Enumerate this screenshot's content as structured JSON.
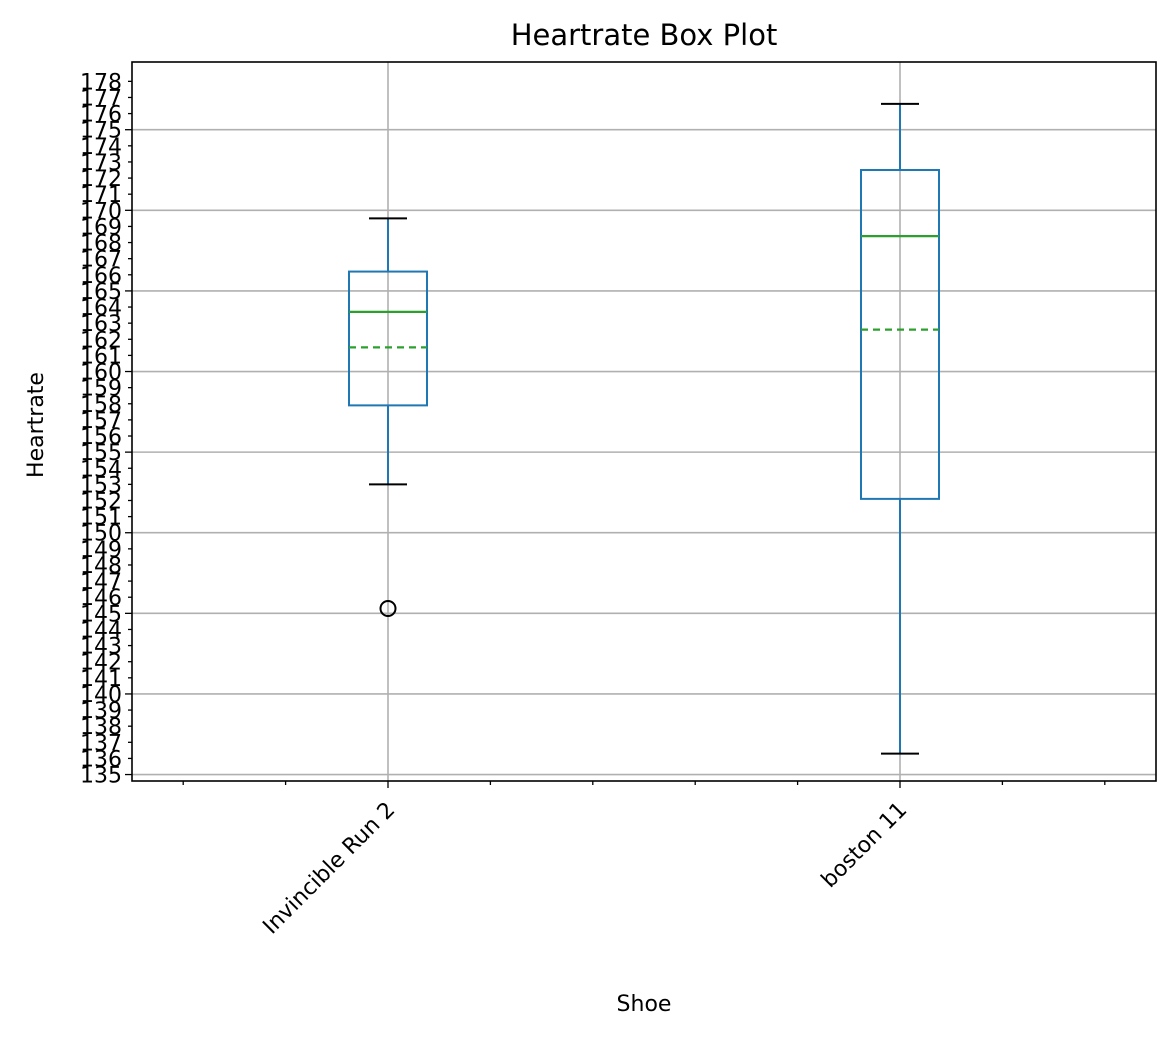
{
  "chart_data": {
    "type": "box",
    "title": "Heartrate Box Plot",
    "xlabel": "Shoe",
    "ylabel": "Heartrate",
    "ylim": [
      134.6,
      179.2
    ],
    "yticks_major": [
      135,
      140,
      145,
      150,
      155,
      160,
      165,
      170,
      175
    ],
    "yticks_all": [
      135,
      136,
      137,
      138,
      139,
      140,
      141,
      142,
      143,
      144,
      145,
      146,
      147,
      148,
      149,
      150,
      151,
      152,
      153,
      154,
      155,
      156,
      157,
      158,
      159,
      160,
      161,
      162,
      163,
      164,
      165,
      166,
      167,
      168,
      169,
      170,
      171,
      172,
      173,
      174,
      175,
      176,
      177,
      178
    ],
    "grid": true,
    "categories": [
      "Invincible Run 2",
      "boston 11"
    ],
    "boxes": [
      {
        "category": "Invincible Run 2",
        "whisker_low": 153.0,
        "q1": 157.9,
        "median": 163.7,
        "mean": 161.5,
        "q3": 166.2,
        "whisker_high": 169.5,
        "outliers": [
          145.3
        ]
      },
      {
        "category": "boston 11",
        "whisker_low": 136.3,
        "q1": 152.1,
        "median": 168.4,
        "mean": 162.6,
        "q3": 172.5,
        "whisker_high": 176.6,
        "outliers": []
      }
    ],
    "colors": {
      "box": "#1f77b4",
      "median": "#2ca02c",
      "mean": "#2ca02c",
      "caps": "#000000",
      "grid": "#b0b0b0",
      "outlier": "#000000"
    }
  }
}
